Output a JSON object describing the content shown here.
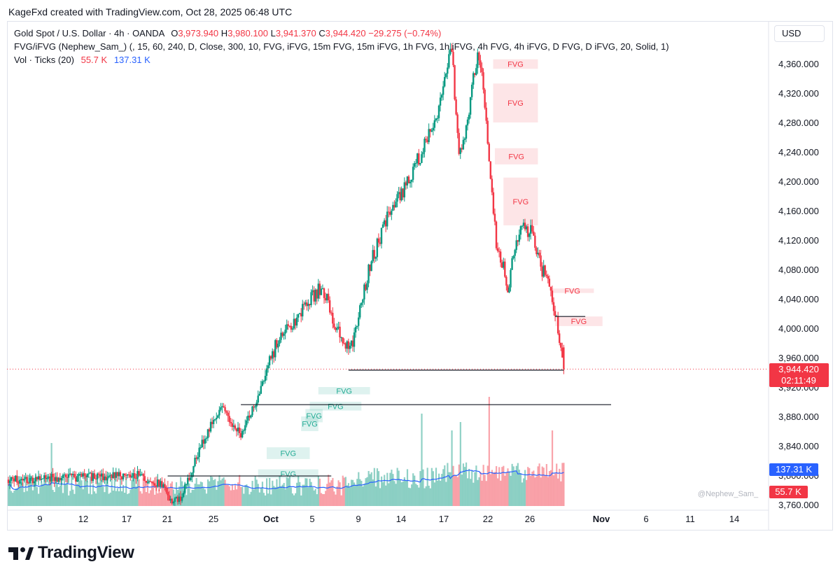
{
  "header": {
    "credit": "KageFxd created with TradingView.com, Oct 28, 2025 06:48 UTC"
  },
  "legend": {
    "symbol": "Gold Spot / U.S. Dollar · 4h · OANDA",
    "o_label": "O",
    "o_value": "3,973.940",
    "h_label": "H",
    "h_value": "3,980.100",
    "l_label": "L",
    "l_value": "3,941.370",
    "c_label": "C",
    "c_value": "3,944.420",
    "change": "−29.275 (−0.74%)",
    "indicator": "FVG/iFVG (Nephew_Sam_) (, 15, 60, 240, D, Close, 300, 10, FVG, iFVG, 15m FVG, 15m iFVG, 1h FVG, 1h iFVG, 4h FVG, 4h iFVG, D FVG, D iFVG, 20, Solid, 1)",
    "volume_label": "Vol · Ticks (20)",
    "volume_value": "55.7 K",
    "volume_ma_value": "137.31 K"
  },
  "currency": "USD",
  "price_badge": {
    "price": "3,944.420",
    "countdown": "02:11:49"
  },
  "volume_badges": {
    "ma": "137.31 K",
    "vol": "55.7 K"
  },
  "watermark": "@Nephew_Sam_",
  "brand": {
    "name": "TradingView"
  },
  "colors": {
    "up": "#089981",
    "down": "#f23645",
    "ma": "#2962ff",
    "fvg_bear": "#f23645",
    "fvg_bull": "#22ab94"
  },
  "chart_data": {
    "type": "candlestick",
    "title": "Gold Spot / U.S. Dollar · 4h · OANDA",
    "y_axis": {
      "ticks": [
        3760,
        3800,
        3840,
        3880,
        3920,
        3960,
        4000,
        4040,
        4080,
        4120,
        4160,
        4200,
        4240,
        4280,
        4320,
        4360
      ],
      "tick_labels": [
        "3,760.000",
        "3,800.000",
        "3,840.000",
        "3,880.000",
        "3,920.000",
        "3,960.000",
        "4,000.000",
        "4,040.000",
        "4,080.000",
        "4,120.000",
        "4,160.000",
        "4,200.000",
        "4,240.000",
        "4,280.000",
        "4,320.000",
        "4,360.000"
      ]
    },
    "x_axis": {
      "labels": [
        "9",
        "12",
        "17",
        "21",
        "25",
        "Oct",
        "5",
        "9",
        "14",
        "17",
        "22",
        "26",
        "Nov",
        "6",
        "11",
        "14"
      ],
      "bold": [
        "Oct",
        "Nov"
      ]
    },
    "price_path": [
      {
        "day": 0,
        "price": 3794
      },
      {
        "day": 15,
        "price": 3800
      },
      {
        "day": 18,
        "price": 3785
      },
      {
        "day": 19,
        "price": 3760
      },
      {
        "day": 20,
        "price": 3770
      },
      {
        "day": 21,
        "price": 3795
      },
      {
        "day": 22,
        "price": 3830
      },
      {
        "day": 24,
        "price": 3880
      },
      {
        "day": 25,
        "price": 3895
      },
      {
        "day": 26,
        "price": 3870
      },
      {
        "day": 27,
        "price": 3855
      },
      {
        "day": 29,
        "price": 3905
      },
      {
        "day": 31,
        "price": 3975
      },
      {
        "day": 34,
        "price": 4025
      },
      {
        "day": 36,
        "price": 4050
      },
      {
        "day": 37,
        "price": 4045
      },
      {
        "day": 38,
        "price": 4000
      },
      {
        "day": 39,
        "price": 3975
      },
      {
        "day": 40,
        "price": 3985
      },
      {
        "day": 42,
        "price": 4085
      },
      {
        "day": 44,
        "price": 4150
      },
      {
        "day": 46,
        "price": 4190
      },
      {
        "day": 48,
        "price": 4240
      },
      {
        "day": 50,
        "price": 4300
      },
      {
        "day": 51,
        "price": 4365
      },
      {
        "day": 51.5,
        "price": 4380
      },
      {
        "day": 52.3,
        "price": 4230
      },
      {
        "day": 53,
        "price": 4255
      },
      {
        "day": 54,
        "price": 4340
      },
      {
        "day": 54.7,
        "price": 4375
      },
      {
        "day": 55.3,
        "price": 4300
      },
      {
        "day": 56,
        "price": 4200
      },
      {
        "day": 56.7,
        "price": 4110
      },
      {
        "day": 57.5,
        "price": 4080
      },
      {
        "day": 58,
        "price": 4040
      },
      {
        "day": 58.5,
        "price": 4085
      },
      {
        "day": 59,
        "price": 4120
      },
      {
        "day": 60,
        "price": 4140
      },
      {
        "day": 61,
        "price": 4125
      },
      {
        "day": 62,
        "price": 4080
      },
      {
        "day": 63,
        "price": 4050
      },
      {
        "day": 63.5,
        "price": 4015
      },
      {
        "day": 64,
        "price": 3990
      },
      {
        "day": 64.5,
        "price": 3944
      }
    ],
    "last": {
      "open": 3973.94,
      "high": 3980.1,
      "low": 3941.37,
      "close": 3944.42
    },
    "levels": [
      {
        "price": 3944.42,
        "style": "dotted-red",
        "label": "last"
      },
      {
        "price": 3943,
        "style": "solid",
        "from_day": 39.5,
        "to_day": 64.5
      },
      {
        "price": 3896,
        "style": "solid",
        "from_day": 27,
        "to_day": 70
      },
      {
        "price": 3799,
        "style": "solid",
        "from_day": 18.5,
        "to_day": 37.5
      },
      {
        "price": 4016,
        "style": "solid",
        "from_day": 63.5,
        "to_day": 67
      }
    ],
    "fvg_zones": [
      {
        "label": "FVG",
        "kind": "bearish",
        "top": 4366,
        "bottom": 4353,
        "from_day": 56.3,
        "to_day": 61.5
      },
      {
        "label": "FVG",
        "kind": "bearish",
        "top": 4333,
        "bottom": 4280,
        "from_day": 56.3,
        "to_day": 61.5
      },
      {
        "label": "FVG",
        "kind": "bearish",
        "top": 4245,
        "bottom": 4223,
        "from_day": 56.5,
        "to_day": 61.5
      },
      {
        "label": "FVG",
        "kind": "bearish",
        "top": 4205,
        "bottom": 4140,
        "from_day": 57.5,
        "to_day": 61.5
      },
      {
        "label": "FVG",
        "kind": "bearish",
        "top": 4054,
        "bottom": 4048,
        "from_day": 63,
        "to_day": 68
      },
      {
        "label": "FVG",
        "kind": "bearish",
        "top": 4016,
        "bottom": 4003,
        "from_day": 63.5,
        "to_day": 69
      },
      {
        "label": "FVG",
        "kind": "bullish",
        "top": 3920,
        "bottom": 3910,
        "from_day": 36,
        "to_day": 42
      },
      {
        "label": "FVG",
        "kind": "bullish",
        "top": 3900,
        "bottom": 3888,
        "from_day": 35,
        "to_day": 41
      },
      {
        "label": "FVG",
        "kind": "bullish",
        "top": 3890,
        "bottom": 3872,
        "from_day": 34.5,
        "to_day": 36.5
      },
      {
        "label": "FVG",
        "kind": "bullish",
        "top": 3880,
        "bottom": 3860,
        "from_day": 34,
        "to_day": 36
      },
      {
        "label": "FVG",
        "kind": "bullish",
        "top": 3838,
        "bottom": 3822,
        "from_day": 30,
        "to_day": 35
      },
      {
        "label": "FVG",
        "kind": "bullish",
        "top": 3808,
        "bottom": 3796,
        "from_day": 29,
        "to_day": 36
      }
    ],
    "volume_spikes": [
      {
        "day": 5,
        "height": 0.75
      },
      {
        "day": 48,
        "height": 1.1
      },
      {
        "day": 51.5,
        "height": 0.9
      },
      {
        "day": 52.5,
        "height": 1.0
      },
      {
        "day": 55.8,
        "height": 1.3
      },
      {
        "day": 63.2,
        "height": 0.9
      }
    ]
  }
}
